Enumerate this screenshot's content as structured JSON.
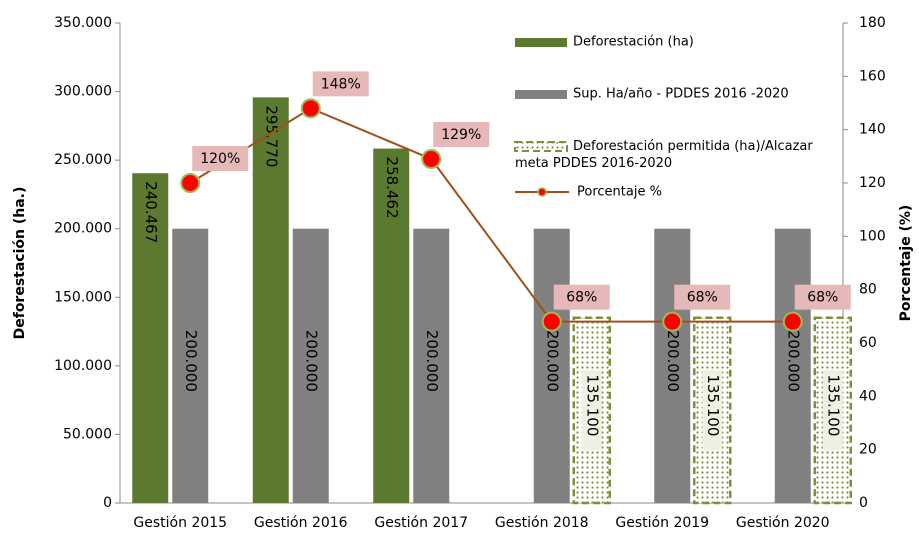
{
  "chart_data": {
    "type": "bar",
    "categories": [
      "Gestión 2015",
      "Gestión 2016",
      "Gestión 2017",
      "Gestión 2018",
      "Gestión 2019",
      "Gestión 2020"
    ],
    "y_label": "Deforestación (ha.)",
    "y2_label": "Porcentaje (%)",
    "ylim": [
      0,
      350000
    ],
    "yticks": [
      0,
      {
        "value": 50000,
        "label": "50.000"
      },
      {
        "value": 100000,
        "label": "100.000"
      },
      {
        "value": 150000,
        "label": "150.000"
      },
      {
        "value": 200000,
        "label": "200.000"
      },
      {
        "value": 250000,
        "label": "250.000"
      },
      {
        "value": 300000,
        "label": "300.000"
      },
      {
        "value": 350000,
        "label": "350.000"
      }
    ],
    "y2lim": [
      0,
      180
    ],
    "y2ticks": [
      0,
      20,
      40,
      60,
      80,
      100,
      120,
      140,
      160,
      180
    ],
    "legend": "upper right",
    "series": [
      {
        "name": "Deforestación (ha)",
        "color": "#5b7a2f",
        "values": [
          240467,
          295770,
          258462,
          null,
          null,
          null
        ],
        "value_labels": [
          "240.467",
          "295.770",
          "258.462",
          null,
          null,
          null
        ]
      },
      {
        "name": "Sup. Ha/año - PDDES 2016 -2020",
        "color": "#808080",
        "values": [
          200000,
          200000,
          200000,
          200000,
          200000,
          200000
        ],
        "value_labels": [
          "200.000",
          "200.000",
          "200.000",
          "200.000",
          "200.000",
          "200.000"
        ]
      },
      {
        "name": "Deforestación permitida (ha)/Alcazar meta PDDES 2016-2020",
        "color": "#7d8f3c",
        "pattern": "dotted",
        "values": [
          null,
          null,
          null,
          135100,
          135100,
          135100
        ],
        "value_labels": [
          null,
          null,
          null,
          "135.100",
          "135.100",
          "135.100"
        ]
      },
      {
        "name": "Porcentaje %",
        "color": "#a0501c",
        "type": "line",
        "axis": "y2",
        "values": [
          120,
          148,
          129,
          68,
          68,
          68
        ],
        "value_labels": [
          "120%",
          "148%",
          "129%",
          "68%",
          "68%",
          "68%"
        ]
      }
    ]
  }
}
